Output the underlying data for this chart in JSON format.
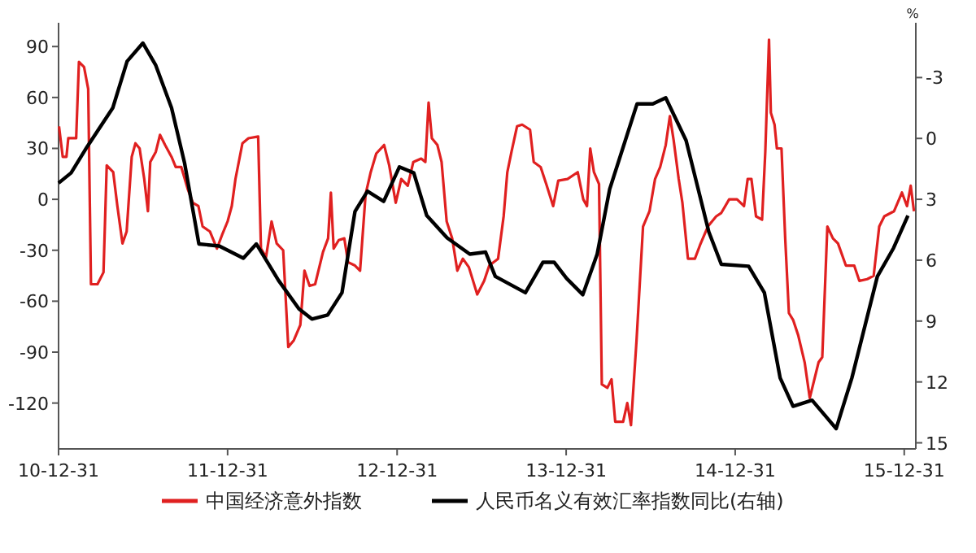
{
  "chart_data": {
    "type": "line",
    "xlim": [
      "2010-12-31",
      "2016-01-25"
    ],
    "xticks": [
      {
        "value": "2010-12-31",
        "label": "10-12-31"
      },
      {
        "value": "2011-12-31",
        "label": "11-12-31"
      },
      {
        "value": "2012-12-31",
        "label": "12-12-31"
      },
      {
        "value": "2013-12-31",
        "label": "13-12-31"
      },
      {
        "value": "2014-12-31",
        "label": "14-12-31"
      },
      {
        "value": "2015-12-31",
        "label": "15-12-31"
      }
    ],
    "ylim": [
      -147,
      104
    ],
    "yticks": [
      -120,
      -90,
      -60,
      -30,
      0,
      30,
      60,
      90
    ],
    "y2lim": [
      15.3,
      -5.7
    ],
    "y2ticks": [
      -3,
      0,
      3,
      6,
      9,
      12,
      15
    ],
    "y2label": "%",
    "legend": "bottom",
    "series": [
      {
        "name": "中国经济意外指数",
        "color": "#e02020",
        "axis": "y",
        "x": [
          "2011-01-01",
          "2011-01-09",
          "2011-01-17",
          "2011-01-21",
          "2011-02-07",
          "2011-02-13",
          "2011-02-24",
          "2011-03-05",
          "2011-03-11",
          "2011-03-25",
          "2011-04-07",
          "2011-04-14",
          "2011-04-28",
          "2011-05-07",
          "2011-05-18",
          "2011-05-27",
          "2011-06-07",
          "2011-06-15",
          "2011-06-24",
          "2011-07-04",
          "2011-07-12",
          "2011-07-17",
          "2011-07-29",
          "2011-08-07",
          "2011-08-18",
          "2011-09-01",
          "2011-09-10",
          "2011-09-22",
          "2011-10-06",
          "2011-10-17",
          "2011-10-29",
          "2011-11-07",
          "2011-11-23",
          "2011-12-08",
          "2011-12-19",
          "2011-12-31",
          "2012-01-09",
          "2012-01-17",
          "2012-02-01",
          "2012-02-14",
          "2012-03-06",
          "2012-03-12",
          "2012-03-23",
          "2012-04-04",
          "2012-04-15",
          "2012-04-29",
          "2012-05-10",
          "2012-05-22",
          "2012-06-05",
          "2012-06-14",
          "2012-06-25",
          "2012-07-07",
          "2012-07-24",
          "2012-08-04",
          "2012-08-10",
          "2012-08-16",
          "2012-08-27",
          "2012-09-08",
          "2012-09-16",
          "2012-10-01",
          "2012-10-12",
          "2012-10-24",
          "2012-11-04",
          "2012-11-16",
          "2012-12-03",
          "2012-12-14",
          "2012-12-28",
          "2013-01-09",
          "2013-01-23",
          "2013-02-04",
          "2013-02-21",
          "2013-03-02",
          "2013-03-09",
          "2013-03-16",
          "2013-03-28",
          "2013-04-06",
          "2013-04-17",
          "2013-04-29",
          "2013-05-10",
          "2013-05-22",
          "2013-06-04",
          "2013-06-22",
          "2013-07-07",
          "2013-07-18",
          "2013-08-06",
          "2013-08-18",
          "2013-08-26",
          "2013-09-04",
          "2013-09-16",
          "2013-09-27",
          "2013-10-14",
          "2013-10-22",
          "2013-11-06",
          "2013-11-18",
          "2013-12-03",
          "2013-12-14",
          "2014-01-03",
          "2014-01-25",
          "2014-02-06",
          "2014-02-14",
          "2014-02-21",
          "2014-03-01",
          "2014-03-12",
          "2014-03-18",
          "2014-03-30",
          "2014-04-08",
          "2014-04-16",
          "2014-05-03",
          "2014-05-12",
          "2014-05-20",
          "2014-06-01",
          "2014-06-15",
          "2014-06-29",
          "2014-07-11",
          "2014-07-22",
          "2014-08-03",
          "2014-08-12",
          "2014-08-20",
          "2014-08-31",
          "2014-09-08",
          "2014-09-20",
          "2014-10-05",
          "2014-10-16",
          "2014-11-02",
          "2014-11-20",
          "2014-12-01",
          "2014-12-18",
          "2015-01-04",
          "2015-01-19",
          "2015-01-27",
          "2015-02-04",
          "2015-02-14",
          "2015-02-27",
          "2015-03-06",
          "2015-03-14",
          "2015-03-18",
          "2015-03-26",
          "2015-03-31",
          "2015-04-10",
          "2015-04-18",
          "2015-04-26",
          "2015-05-05",
          "2015-05-16",
          "2015-05-30",
          "2015-06-10",
          "2015-06-20",
          "2015-06-29",
          "2015-07-07",
          "2015-07-18",
          "2015-07-30",
          "2015-08-10",
          "2015-08-27",
          "2015-09-14",
          "2015-09-25",
          "2015-10-12",
          "2015-10-26",
          "2015-11-07",
          "2015-11-18",
          "2015-12-09",
          "2015-12-26",
          "2016-01-06",
          "2016-01-14",
          "2016-01-21"
        ],
        "values": [
          43,
          25,
          25,
          36,
          36,
          81,
          78,
          65,
          -50,
          -50,
          -43,
          20,
          16,
          -4,
          -26,
          -19,
          25,
          33,
          30,
          12,
          -7,
          22,
          28,
          38,
          32,
          25,
          19,
          19,
          6,
          -2,
          -4,
          -16,
          -19,
          -29,
          -21,
          -13,
          -4,
          12,
          33,
          36,
          37,
          -29,
          -34,
          -13,
          -26,
          -30,
          -87,
          -83,
          -74,
          -42,
          -51,
          -50,
          -31,
          -23,
          4,
          -29,
          -24,
          -23,
          -37,
          -39,
          -42,
          3,
          16,
          27,
          32,
          20,
          -2,
          12,
          8,
          22,
          24,
          22,
          57,
          36,
          32,
          22,
          -13,
          -23,
          -42,
          -35,
          -40,
          -56,
          -48,
          -39,
          -35,
          -10,
          16,
          28,
          43,
          44,
          41,
          22,
          19,
          9,
          -4,
          11,
          12,
          16,
          0,
          -4,
          30,
          16,
          9,
          -109,
          -111,
          -106,
          -131,
          -131,
          -120,
          -133,
          -83,
          -16,
          -7,
          12,
          19,
          32,
          49,
          35,
          12,
          -2,
          -35,
          -35,
          -27,
          -16,
          -10,
          -8,
          0,
          0,
          -4,
          12,
          12,
          -10,
          -12,
          28,
          94,
          51,
          44,
          30,
          30,
          -23,
          -67,
          -71,
          -80,
          -96,
          -117,
          -106,
          -96,
          -93,
          -16,
          -23,
          -26,
          -39,
          -39,
          -48,
          -47,
          -45,
          -16,
          -10,
          -7,
          4,
          -4,
          8,
          -7
        ]
      },
      {
        "name": "人民币名义有效汇率指数同比(右轴)",
        "color": "#000000",
        "axis": "y2",
        "x": [
          "2010-12-31",
          "2011-01-27",
          "2011-03-03",
          "2011-04-27",
          "2011-05-28",
          "2011-07-01",
          "2011-07-29",
          "2011-09-01",
          "2011-09-29",
          "2011-10-30",
          "2011-12-13",
          "2012-02-03",
          "2012-03-02",
          "2012-04-19",
          "2012-06-02",
          "2012-06-30",
          "2012-08-03",
          "2012-09-03",
          "2012-10-01",
          "2012-10-28",
          "2012-12-02",
          "2013-01-05",
          "2013-02-05",
          "2013-03-05",
          "2013-04-18",
          "2013-06-06",
          "2013-07-10",
          "2013-07-31",
          "2013-10-04",
          "2013-11-11",
          "2013-12-05",
          "2014-01-01",
          "2014-02-05",
          "2014-03-08",
          "2014-04-04",
          "2014-06-02",
          "2014-07-06",
          "2014-08-03",
          "2014-09-16",
          "2014-11-04",
          "2014-12-01",
          "2015-01-29",
          "2015-03-04",
          "2015-04-07",
          "2015-05-05",
          "2015-06-15",
          "2015-08-06",
          "2015-09-09",
          "2015-11-03",
          "2015-12-08",
          "2016-01-08"
        ],
        "values": [
          2.2,
          1.7,
          0.4,
          -1.5,
          -3.8,
          -4.7,
          -3.6,
          -1.5,
          1.2,
          5.2,
          5.3,
          5.9,
          5.2,
          7.0,
          8.4,
          8.9,
          8.7,
          7.6,
          3.6,
          2.6,
          3.1,
          1.4,
          1.7,
          3.8,
          4.9,
          5.7,
          5.6,
          6.8,
          7.6,
          6.1,
          6.1,
          6.9,
          7.7,
          5.7,
          2.5,
          -1.7,
          -1.7,
          -2.0,
          0.1,
          4.6,
          6.2,
          6.3,
          7.6,
          11.8,
          13.2,
          12.9,
          14.3,
          11.8,
          6.8,
          5.4,
          3.8
        ]
      }
    ]
  }
}
